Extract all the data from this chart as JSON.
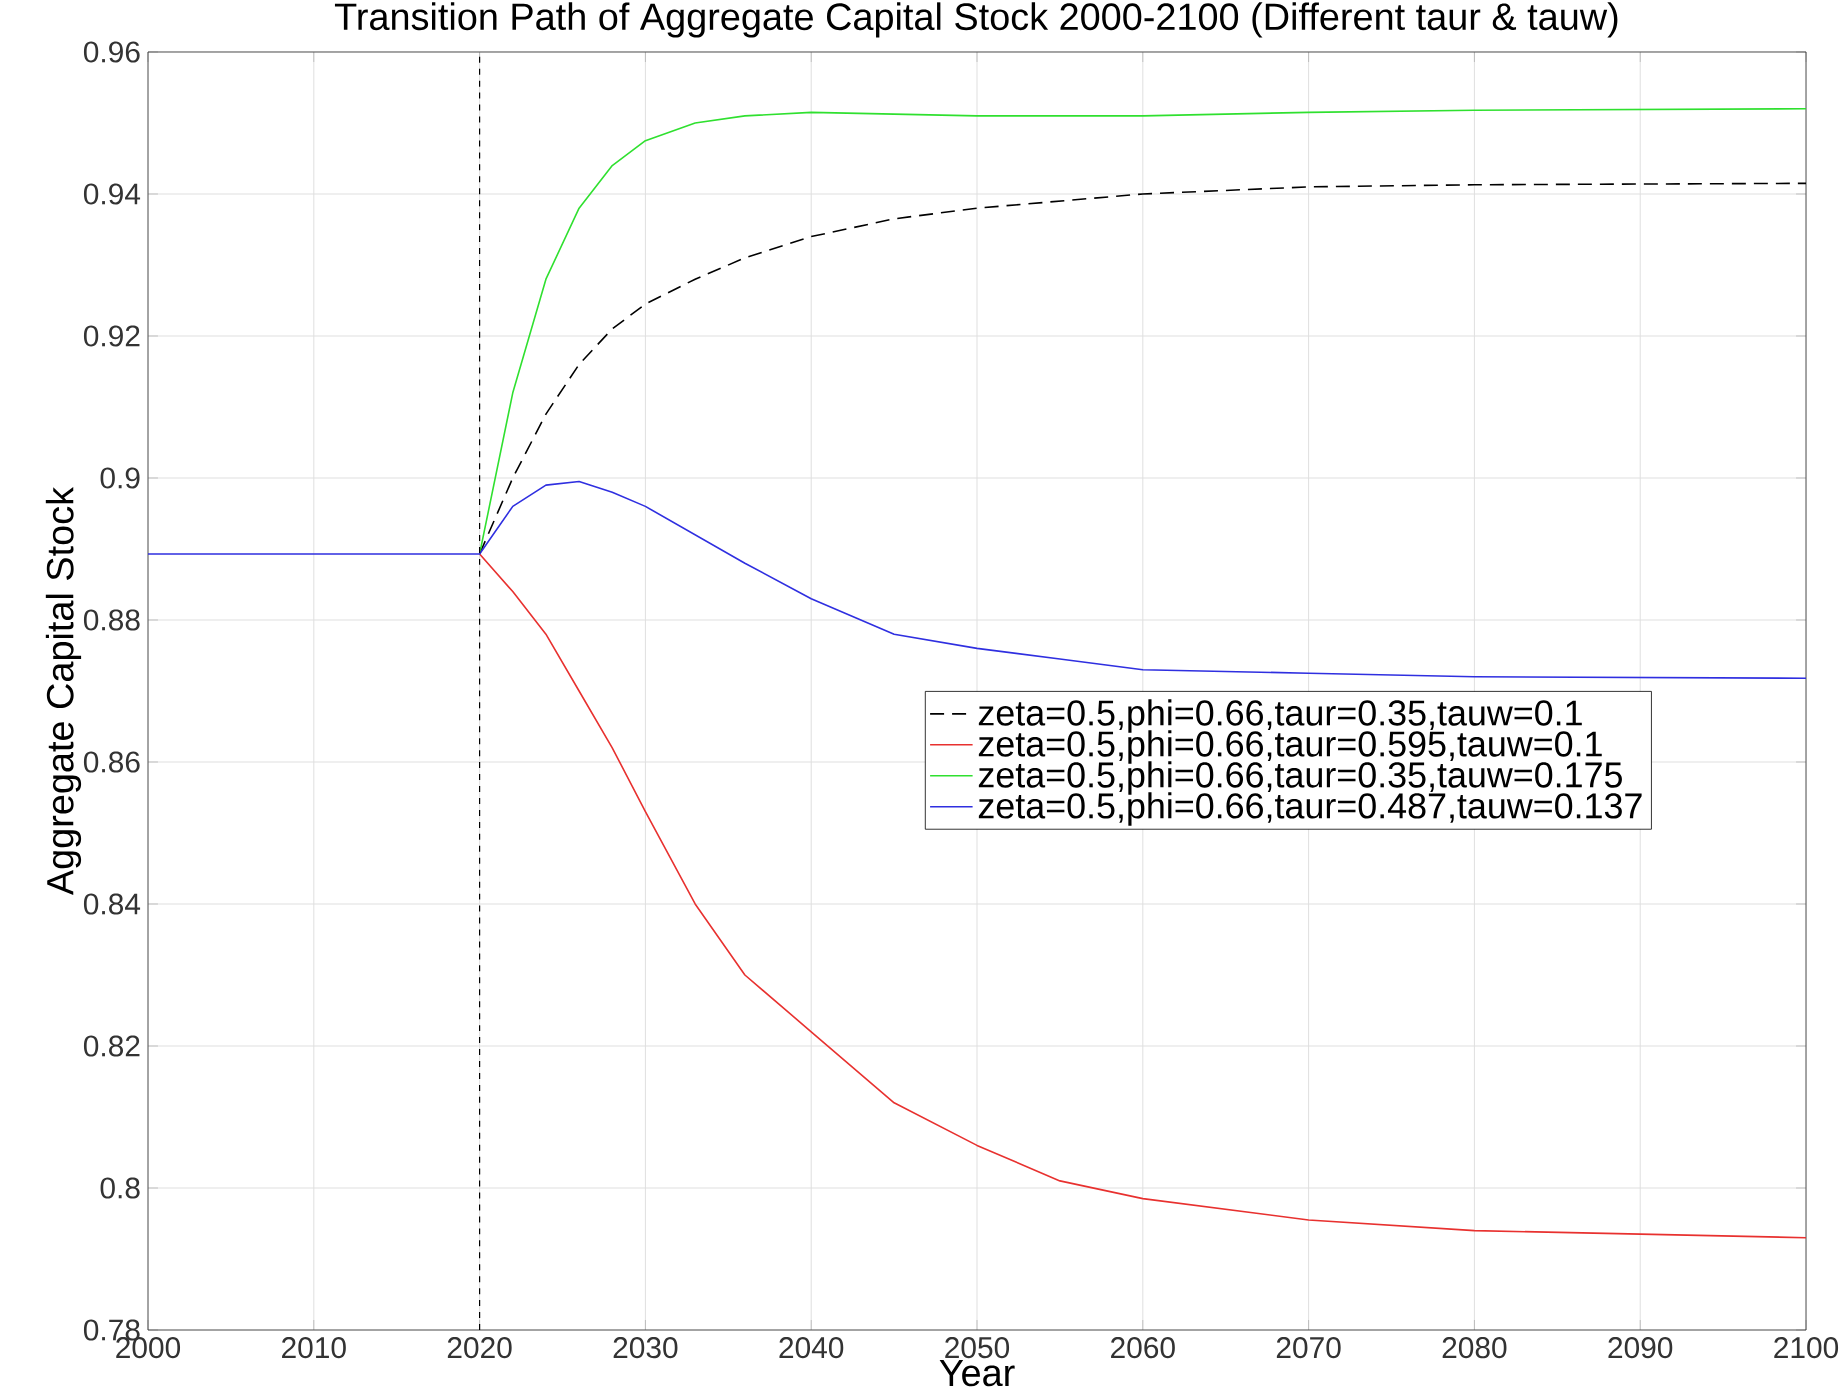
{
  "chart_data": {
    "type": "line",
    "title": "Transition Path of Aggregate Capital Stock 2000-2100 (Different taur & tauw)",
    "xlabel": "Year",
    "ylabel": "Aggregate Capital Stock",
    "xlim": [
      2000,
      2100
    ],
    "ylim": [
      0.78,
      0.96
    ],
    "xticks": [
      2000,
      2010,
      2020,
      2030,
      2040,
      2050,
      2060,
      2070,
      2080,
      2090,
      2100
    ],
    "yticks": [
      0.78,
      0.8,
      0.82,
      0.84,
      0.86,
      0.88,
      0.9,
      0.92,
      0.94,
      0.96
    ],
    "grid": true,
    "legend": "right",
    "ref_lines": [
      {
        "axis": "x",
        "value": 2020,
        "color": "#000000",
        "line_style": "dashed"
      }
    ],
    "series": [
      {
        "name": "zeta=0.5,phi=0.66,taur=0.35,tauw=0.1",
        "color": "#000000",
        "line_style": "dashed",
        "x": [
          2020,
          2022,
          2024,
          2026,
          2028,
          2030,
          2033,
          2036,
          2040,
          2045,
          2050,
          2060,
          2070,
          2080,
          2100
        ],
        "values": [
          0.8893,
          0.9,
          0.909,
          0.916,
          0.921,
          0.9245,
          0.928,
          0.931,
          0.934,
          0.9365,
          0.938,
          0.94,
          0.941,
          0.9413,
          0.9415
        ]
      },
      {
        "name": "zeta=0.5,phi=0.66,taur=0.595,tauw=0.1",
        "color": "#e8312f",
        "line_style": "solid",
        "x": [
          2020,
          2022,
          2024,
          2026,
          2028,
          2030,
          2033,
          2036,
          2040,
          2045,
          2050,
          2055,
          2060,
          2070,
          2080,
          2090,
          2100
        ],
        "values": [
          0.8893,
          0.884,
          0.878,
          0.87,
          0.862,
          0.853,
          0.84,
          0.83,
          0.822,
          0.812,
          0.806,
          0.801,
          0.7985,
          0.7955,
          0.794,
          0.7935,
          0.793
        ]
      },
      {
        "name": "zeta=0.5,phi=0.66,taur=0.35,tauw=0.175",
        "color": "#2fe02f",
        "line_style": "solid",
        "x": [
          2020,
          2022,
          2024,
          2026,
          2028,
          2030,
          2033,
          2036,
          2040,
          2050,
          2060,
          2070,
          2080,
          2100
        ],
        "values": [
          0.8893,
          0.912,
          0.928,
          0.938,
          0.944,
          0.9475,
          0.95,
          0.951,
          0.9515,
          0.951,
          0.951,
          0.9515,
          0.9518,
          0.952
        ]
      },
      {
        "name": "zeta=0.5,phi=0.66,taur=0.487,tauw=0.137",
        "color": "#2f2fe0",
        "line_style": "solid",
        "x": [
          2000,
          2010,
          2020,
          2022,
          2024,
          2026,
          2028,
          2030,
          2033,
          2036,
          2040,
          2045,
          2050,
          2055,
          2060,
          2070,
          2080,
          2100
        ],
        "values": [
          0.8893,
          0.8893,
          0.8893,
          0.896,
          0.899,
          0.8995,
          0.898,
          0.896,
          0.892,
          0.888,
          0.883,
          0.878,
          0.876,
          0.8745,
          0.873,
          0.8725,
          0.872,
          0.8718
        ]
      }
    ]
  }
}
